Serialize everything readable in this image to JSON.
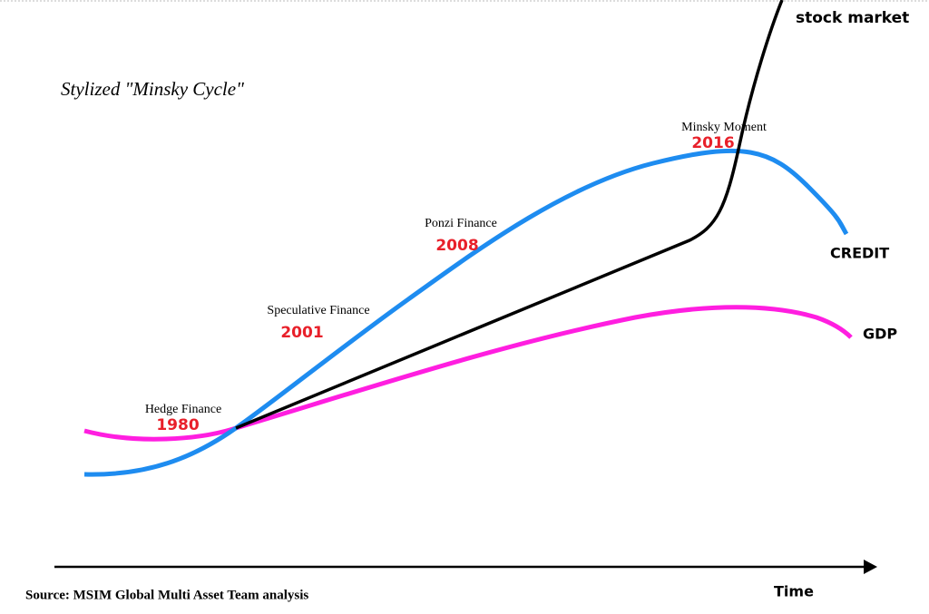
{
  "title": "Stylized \"Minsky Cycle\"",
  "stages": [
    {
      "label": "Hedge Finance",
      "year": "1980"
    },
    {
      "label": "Speculative Finance",
      "year": "2001"
    },
    {
      "label": "Ponzi Finance",
      "year": "2008"
    },
    {
      "label": "Minsky Moment",
      "year": "2016"
    }
  ],
  "curves": {
    "stock": "stock market",
    "credit": "CREDIT",
    "gdp": "GDP"
  },
  "x_axis_label": "Time",
  "source": "Source: MSIM Global Multi Asset Team analysis"
}
